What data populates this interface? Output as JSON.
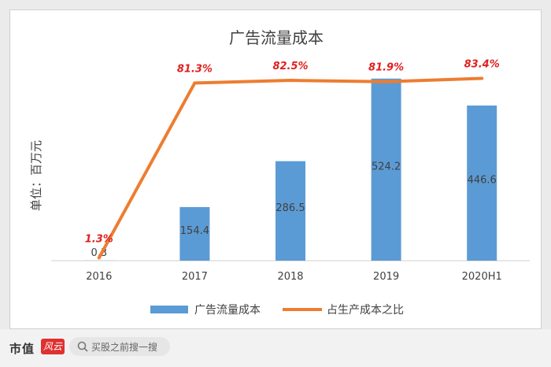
{
  "chart_data": {
    "type": "bar+line",
    "title": "广告流量成本",
    "ylabel": "单位：百万元",
    "categories": [
      "2016",
      "2017",
      "2018",
      "2019",
      "2020H1"
    ],
    "series": [
      {
        "name": "广告流量成本",
        "type": "bar",
        "values": [
          0.3,
          154.4,
          286.5,
          524.2,
          446.6
        ],
        "labels": [
          "0.3",
          "154.4",
          "286.5",
          "524.2",
          "446.6"
        ],
        "color": "#5b9bd5"
      },
      {
        "name": "占生产成本之比",
        "type": "line",
        "values": [
          1.3,
          81.3,
          82.5,
          81.9,
          83.4
        ],
        "labels": [
          "1.3%",
          "81.3%",
          "82.5%",
          "81.9%",
          "83.4%"
        ],
        "color": "#ed7d31"
      }
    ],
    "bar_ylim": [
      0,
      560
    ],
    "line_ylim": [
      0,
      89
    ],
    "legend_position": "bottom",
    "grid": false
  },
  "footer": {
    "brand": "市值",
    "brand_mark": "风云",
    "search_placeholder": "买股之前搜一搜"
  },
  "watermark": "市值风云",
  "colors": {
    "bar": "#5b9bd5",
    "line": "#ed7d31",
    "line_label": "#e02020"
  }
}
